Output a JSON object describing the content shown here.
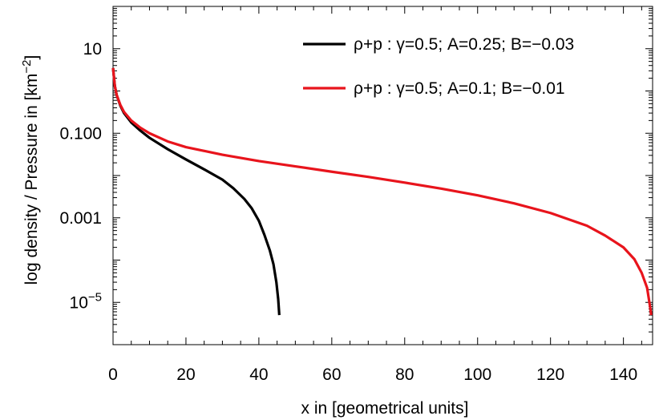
{
  "chart_data": {
    "type": "line",
    "xlabel": "x in [geometrical  units]",
    "ylabel": {
      "main": "log density / Pressure in [km",
      "sup": "−2",
      "end": "]"
    },
    "xlim": [
      0,
      148
    ],
    "ylim_log10": [
      -6,
      2
    ],
    "y_scale": "log",
    "x_ticks": [
      0,
      20,
      40,
      60,
      80,
      100,
      120,
      140
    ],
    "x_tick_labels": [
      "0",
      "20",
      "40",
      "60",
      "80",
      "100",
      "120",
      "140"
    ],
    "y_ticks": [
      {
        "value": 10,
        "label": "10"
      },
      {
        "value": 0.1,
        "label": "0.100"
      },
      {
        "value": 0.001,
        "label": "0.001"
      },
      {
        "value": 1e-05,
        "label_base": "10",
        "label_sup": "−5"
      }
    ],
    "legend_position": "top-right",
    "series": [
      {
        "name": "ρ+p : γ=0.5; A=0.25; B=−0.03",
        "color": "#000000",
        "points": [
          [
            0,
            3.5
          ],
          [
            0.5,
            1.3
          ],
          [
            1,
            0.8
          ],
          [
            2,
            0.45
          ],
          [
            3,
            0.3
          ],
          [
            5,
            0.18
          ],
          [
            7.5,
            0.115
          ],
          [
            10,
            0.078
          ],
          [
            15,
            0.042
          ],
          [
            20,
            0.024
          ],
          [
            25,
            0.014
          ],
          [
            30,
            0.008
          ],
          [
            33,
            0.005
          ],
          [
            36,
            0.0028
          ],
          [
            38,
            0.0017
          ],
          [
            40,
            0.00085
          ],
          [
            41.5,
            0.0004
          ],
          [
            43,
            0.00017
          ],
          [
            44,
            8e-05
          ],
          [
            44.8,
            3e-05
          ],
          [
            45.3,
            1.2e-05
          ],
          [
            45.6,
            5e-06
          ]
        ]
      },
      {
        "name": "ρ+p : γ=0.5; A=0.1; B=−0.01",
        "color": "#e8141c",
        "points": [
          [
            0,
            3.5
          ],
          [
            0.5,
            1.3
          ],
          [
            1,
            0.8
          ],
          [
            2,
            0.47
          ],
          [
            3,
            0.32
          ],
          [
            5,
            0.2
          ],
          [
            7.5,
            0.135
          ],
          [
            10,
            0.1
          ],
          [
            15,
            0.064
          ],
          [
            20,
            0.047
          ],
          [
            30,
            0.031
          ],
          [
            40,
            0.022
          ],
          [
            50,
            0.0165
          ],
          [
            60,
            0.0123
          ],
          [
            70,
            0.0093
          ],
          [
            80,
            0.0068
          ],
          [
            90,
            0.0049
          ],
          [
            100,
            0.0034
          ],
          [
            110,
            0.0022
          ],
          [
            120,
            0.0013
          ],
          [
            130,
            0.00065
          ],
          [
            135,
            0.00038
          ],
          [
            140,
            0.0002
          ],
          [
            143,
            0.000105
          ],
          [
            145,
            5e-05
          ],
          [
            146.5,
            2.2e-05
          ],
          [
            147.3,
            8e-06
          ],
          [
            147.6,
            5e-06
          ]
        ]
      }
    ]
  }
}
